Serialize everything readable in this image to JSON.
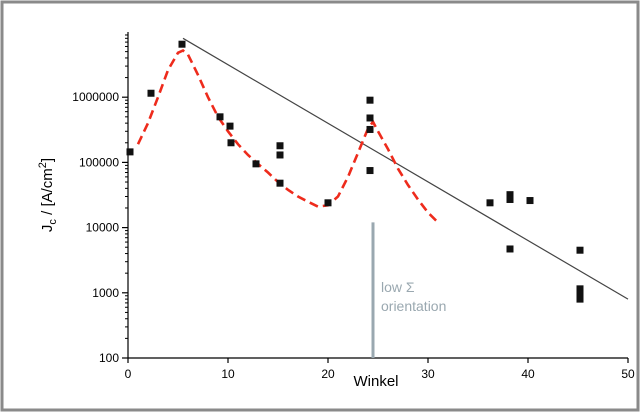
{
  "chart_data": {
    "type": "scatter",
    "title": "",
    "xlabel": "Winkel",
    "ylabel_main": "J",
    "ylabel_sub": "c",
    "ylabel_rest": " / [A/cm",
    "ylabel_sup": "2",
    "ylabel_end": "]",
    "xlim": [
      0,
      50
    ],
    "ylim": [
      100,
      10000000
    ],
    "yscale": "log",
    "x_ticks": [
      0,
      10,
      20,
      30,
      40,
      50
    ],
    "x_tick_labels": [
      "0",
      "10",
      "20",
      "30",
      "40",
      "50"
    ],
    "y_ticks": [
      100,
      1000,
      10000,
      100000,
      1000000
    ],
    "y_tick_labels": [
      "100",
      "1000",
      "10000",
      "100000",
      "1000000"
    ],
    "grid": false,
    "points": [
      {
        "x": 0.2,
        "y": 145000
      },
      {
        "x": 2.3,
        "y": 1150000
      },
      {
        "x": 5.4,
        "y": 6500000
      },
      {
        "x": 9.2,
        "y": 500000
      },
      {
        "x": 10.2,
        "y": 360000
      },
      {
        "x": 10.3,
        "y": 200000
      },
      {
        "x": 12.8,
        "y": 95000
      },
      {
        "x": 15.2,
        "y": 180000
      },
      {
        "x": 15.2,
        "y": 130000
      },
      {
        "x": 15.2,
        "y": 48000
      },
      {
        "x": 20.0,
        "y": 24000
      },
      {
        "x": 24.2,
        "y": 900000
      },
      {
        "x": 24.2,
        "y": 480000
      },
      {
        "x": 24.2,
        "y": 320000
      },
      {
        "x": 24.2,
        "y": 75000
      },
      {
        "x": 36.2,
        "y": 24000
      },
      {
        "x": 38.2,
        "y": 32000
      },
      {
        "x": 38.2,
        "y": 27000
      },
      {
        "x": 38.2,
        "y": 4700
      },
      {
        "x": 40.2,
        "y": 26000
      },
      {
        "x": 45.2,
        "y": 4500
      },
      {
        "x": 45.2,
        "y": 1150
      },
      {
        "x": 45.2,
        "y": 950
      },
      {
        "x": 45.2,
        "y": 800
      }
    ],
    "trend_line": {
      "x": [
        5.5,
        50
      ],
      "y": [
        8000000,
        800
      ],
      "color": "#444444"
    },
    "fit_curve": {
      "color": "#ee2b1c",
      "x": [
        1,
        2,
        3,
        4,
        5,
        5.5,
        6,
        7,
        8,
        9,
        10,
        11,
        12,
        13,
        14,
        15,
        16,
        17,
        18,
        19,
        20,
        21,
        22,
        23,
        24,
        24.5,
        25,
        26,
        27,
        28,
        29,
        30,
        31
      ],
      "y": [
        190000,
        400000,
        1000000,
        2600000,
        4800000,
        5200000,
        4500000,
        2200000,
        1000000,
        500000,
        300000,
        190000,
        130000,
        95000,
        70000,
        50000,
        38000,
        30000,
        25000,
        21000,
        22000,
        30000,
        60000,
        140000,
        330000,
        420000,
        300000,
        160000,
        80000,
        45000,
        27000,
        17000,
        12000
      ]
    },
    "marker_line": {
      "x": 24.5,
      "y_from": 100,
      "y_to": 12000,
      "color": "#9aa8b0"
    },
    "annotation_lines": [
      "low Σ",
      "orientation"
    ],
    "annotation_color": "#9aa8b0",
    "frame_color": "#8a8a8a",
    "marker_color": "#111111"
  }
}
